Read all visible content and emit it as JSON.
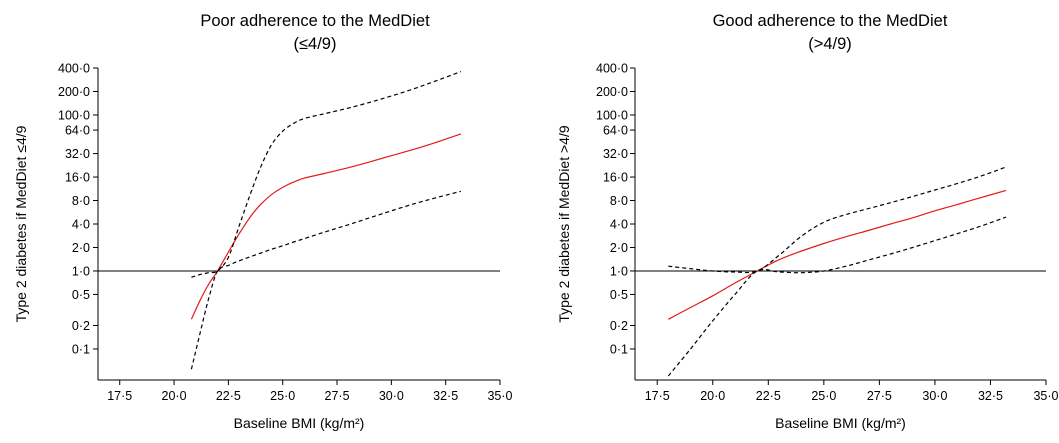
{
  "chart_data": [
    {
      "type": "line",
      "title": "Poor adherence to the MedDiet",
      "subtitle": "(≤4/9)",
      "xlabel": "Baseline BMI (kg/m²)",
      "ylabel": "Type 2 diabetes if MedDiet ≤4/9",
      "xlim": [
        16.5,
        35.0
      ],
      "ylim": [
        0.04,
        400.0
      ],
      "yscale": "log",
      "xticks": [
        17.5,
        20.0,
        22.5,
        25.0,
        27.5,
        30.0,
        32.5,
        35.0
      ],
      "xtick_labels": [
        "17·5",
        "20·0",
        "22·5",
        "25·0",
        "27·5",
        "30·0",
        "32·5",
        "35·0"
      ],
      "yticks": [
        0.1,
        0.2,
        0.5,
        1.0,
        2.0,
        4.0,
        8.0,
        16.0,
        32.0,
        64.0,
        100.0,
        200.0,
        400.0
      ],
      "ytick_labels": [
        "0·1",
        "0·2",
        "0·5",
        "1·0",
        "2·0",
        "4·0",
        "8·0",
        "16·0",
        "32·0",
        "64·0",
        "100·0",
        "200·0",
        "400·0"
      ],
      "reference_line": 1.0,
      "series": [
        {
          "role": "estimate",
          "color": "#e41a1c",
          "dash": "solid",
          "x": [
            20.8,
            21.2,
            21.6,
            22.0,
            22.5,
            23.0,
            23.5,
            24.0,
            24.5,
            25.0,
            25.5,
            26.0,
            27.0,
            28.0,
            29.0,
            30.0,
            31.0,
            32.0,
            33.2
          ],
          "y": [
            0.24,
            0.42,
            0.68,
            1.0,
            1.75,
            3.0,
            4.9,
            7.2,
            9.6,
            11.8,
            13.8,
            15.5,
            18.0,
            21.0,
            25.0,
            30.0,
            36.0,
            44.0,
            57.0
          ]
        },
        {
          "role": "upper",
          "color": "#000000",
          "dash": "dashed",
          "x": [
            20.8,
            21.2,
            21.6,
            22.0,
            22.5,
            23.0,
            23.5,
            24.0,
            24.5,
            25.0,
            25.5,
            26.0,
            27.0,
            28.0,
            29.0,
            30.0,
            31.0,
            32.0,
            33.2
          ],
          "y": [
            0.83,
            0.9,
            0.95,
            1.0,
            1.5,
            3.8,
            9.5,
            22.0,
            42.0,
            62.0,
            78.0,
            90.0,
            105.0,
            122.0,
            145.0,
            175.0,
            215.0,
            270.0,
            360.0
          ]
        },
        {
          "role": "lower",
          "color": "#000000",
          "dash": "dashed",
          "x": [
            20.8,
            21.2,
            21.6,
            22.0,
            22.5,
            23.0,
            23.5,
            24.0,
            24.5,
            25.0,
            25.5,
            26.0,
            27.0,
            28.0,
            29.0,
            30.0,
            31.0,
            32.0,
            33.2
          ],
          "y": [
            0.055,
            0.16,
            0.45,
            1.0,
            1.18,
            1.35,
            1.52,
            1.7,
            1.9,
            2.1,
            2.35,
            2.6,
            3.2,
            3.9,
            4.8,
            5.9,
            7.2,
            8.6,
            10.5
          ]
        }
      ]
    },
    {
      "type": "line",
      "title": "Good adherence to the MedDiet",
      "subtitle": "(>4/9)",
      "xlabel": "Baseline BMI (kg/m²)",
      "ylabel": "Type 2 diabetes if MedDiet >4/9",
      "xlim": [
        16.5,
        35.0
      ],
      "ylim": [
        0.04,
        400.0
      ],
      "yscale": "log",
      "xticks": [
        17.5,
        20.0,
        22.5,
        25.0,
        27.5,
        30.0,
        32.5,
        35.0
      ],
      "xtick_labels": [
        "17·5",
        "20·0",
        "22·5",
        "25·0",
        "27·5",
        "30·0",
        "32·5",
        "35·0"
      ],
      "yticks": [
        0.1,
        0.2,
        0.5,
        1.0,
        2.0,
        4.0,
        8.0,
        16.0,
        32.0,
        64.0,
        100.0,
        200.0,
        400.0
      ],
      "ytick_labels": [
        "0·1",
        "0·2",
        "0·5",
        "1·0",
        "2·0",
        "4·0",
        "8·0",
        "16·0",
        "32·0",
        "64·0",
        "100·0",
        "200·0",
        "400·0"
      ],
      "reference_line": 1.0,
      "series": [
        {
          "role": "estimate",
          "color": "#e41a1c",
          "dash": "solid",
          "x": [
            18.0,
            19.0,
            20.0,
            21.0,
            22.0,
            23.0,
            24.0,
            25.0,
            26.0,
            27.0,
            28.0,
            29.0,
            30.0,
            31.0,
            32.0,
            33.2
          ],
          "y": [
            0.24,
            0.34,
            0.48,
            0.7,
            1.0,
            1.4,
            1.8,
            2.25,
            2.75,
            3.3,
            4.0,
            4.8,
            5.9,
            7.1,
            8.6,
            10.8
          ]
        },
        {
          "role": "upper",
          "color": "#000000",
          "dash": "dashed",
          "x": [
            18.0,
            19.0,
            20.0,
            21.0,
            22.0,
            23.0,
            24.0,
            25.0,
            26.0,
            27.0,
            28.0,
            29.0,
            30.0,
            31.0,
            32.0,
            33.2
          ],
          "y": [
            1.15,
            1.07,
            1.0,
            0.97,
            1.0,
            1.6,
            2.8,
            4.2,
            5.3,
            6.3,
            7.5,
            9.0,
            10.9,
            13.2,
            16.2,
            21.5
          ]
        },
        {
          "role": "lower",
          "color": "#000000",
          "dash": "dashed",
          "x": [
            18.0,
            19.0,
            20.0,
            21.0,
            22.0,
            23.0,
            24.0,
            25.0,
            26.0,
            27.0,
            28.0,
            29.0,
            30.0,
            31.0,
            32.0,
            33.2
          ],
          "y": [
            0.045,
            0.1,
            0.23,
            0.5,
            1.0,
            0.97,
            0.95,
            1.0,
            1.15,
            1.38,
            1.65,
            2.0,
            2.45,
            3.0,
            3.7,
            4.9
          ]
        }
      ]
    }
  ]
}
